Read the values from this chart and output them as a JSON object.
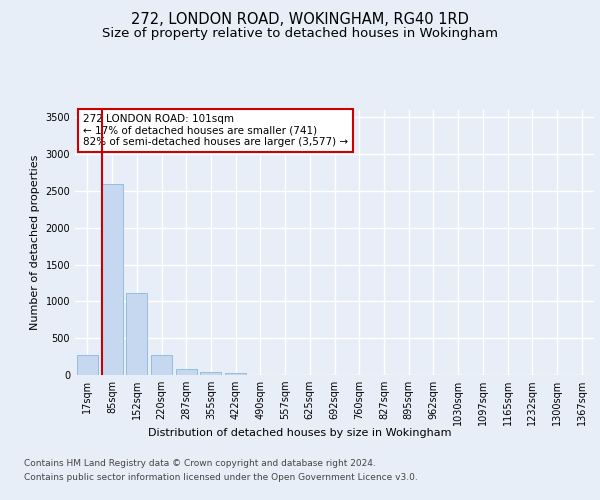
{
  "title": "272, LONDON ROAD, WOKINGHAM, RG40 1RD",
  "subtitle": "Size of property relative to detached houses in Wokingham",
  "xlabel": "Distribution of detached houses by size in Wokingham",
  "ylabel": "Number of detached properties",
  "footnote1": "Contains HM Land Registry data © Crown copyright and database right 2024.",
  "footnote2": "Contains public sector information licensed under the Open Government Licence v3.0.",
  "bar_labels": [
    "17sqm",
    "85sqm",
    "152sqm",
    "220sqm",
    "287sqm",
    "355sqm",
    "422sqm",
    "490sqm",
    "557sqm",
    "625sqm",
    "692sqm",
    "760sqm",
    "827sqm",
    "895sqm",
    "962sqm",
    "1030sqm",
    "1097sqm",
    "1165sqm",
    "1232sqm",
    "1300sqm",
    "1367sqm"
  ],
  "bar_values": [
    270,
    2600,
    1120,
    275,
    85,
    45,
    30,
    0,
    0,
    0,
    0,
    0,
    0,
    0,
    0,
    0,
    0,
    0,
    0,
    0,
    0
  ],
  "bar_color": "#c5d8f0",
  "bar_edge_color": "#7aadd4",
  "vline_color": "#cc0000",
  "annotation_title": "272 LONDON ROAD: 101sqm",
  "annotation_line1": "← 17% of detached houses are smaller (741)",
  "annotation_line2": "82% of semi-detached houses are larger (3,577) →",
  "annotation_box_color": "#cc0000",
  "ylim": [
    0,
    3600
  ],
  "yticks": [
    0,
    500,
    1000,
    1500,
    2000,
    2500,
    3000,
    3500
  ],
  "bg_color": "#e8eef7",
  "plot_bg_color": "#e8eef7",
  "grid_color": "#ffffff",
  "title_fontsize": 10.5,
  "subtitle_fontsize": 9.5,
  "axis_label_fontsize": 8,
  "tick_fontsize": 7,
  "footnote_fontsize": 6.5
}
